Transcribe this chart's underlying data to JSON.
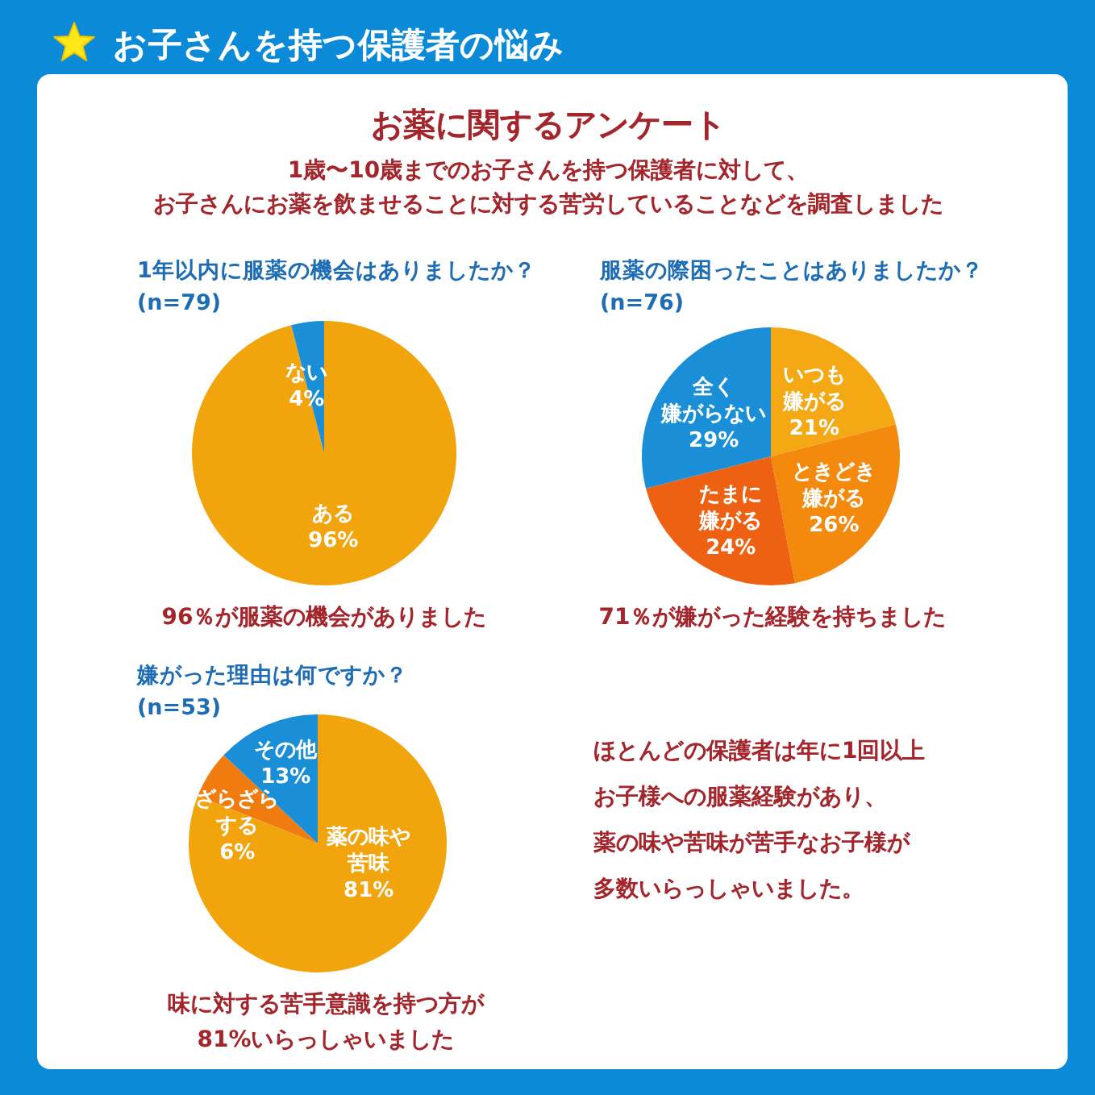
{
  "chart_data": [
    {
      "type": "other",
      "title": "お子さんを持つ保護者の悩み",
      "subtitle": "お薬に関するアンケート",
      "annotations": [
        "1歳〜10歳までのお子さんを持つ保護者に対して、",
        "お子さんにお薬を飲ませることに対する苦労していることなどを調査しました"
      ]
    },
    {
      "type": "pie",
      "title": "1年以内に服薬の機会はありましたか？",
      "subtitle": "(n=79)",
      "categories": [
        "ある",
        "ない"
      ],
      "values": [
        96,
        4
      ],
      "colors": [
        "#f2a40c",
        "#1a8fd8"
      ],
      "value_labels": [
        "96%",
        "4%"
      ],
      "annotations": [
        "96％が服薬の機会がありました"
      ]
    },
    {
      "type": "pie",
      "title": "服薬の際困ったことはありましたか？",
      "subtitle": "(n=76)",
      "categories": [
        "いつも嫌がる",
        "ときどき嫌がる",
        "たまに嫌がる",
        "全く嫌がらない"
      ],
      "values": [
        21,
        26,
        24,
        29
      ],
      "colors": [
        "#f3a814",
        "#f38a0e",
        "#ee6112",
        "#1a8fd8"
      ],
      "value_labels": [
        "21%",
        "26%",
        "24%",
        "29%"
      ],
      "annotations": [
        "71％が嫌がった経験を持ちました"
      ]
    },
    {
      "type": "pie",
      "title": "嫌がった理由は何ですか？",
      "subtitle": "(n=53)",
      "categories": [
        "薬の味や苦味",
        "ざらざらする",
        "その他"
      ],
      "values": [
        81,
        6,
        13
      ],
      "colors": [
        "#f2a40c",
        "#f07c10",
        "#1a8fd8"
      ],
      "value_labels": [
        "81%",
        "6%",
        "13%"
      ],
      "annotations": [
        "味に対する苦手意識を持つ方が",
        "81%いらっしゃいました"
      ]
    },
    {
      "type": "other",
      "annotations": [
        "ほとんどの保護者は年に1回以上",
        "お子様への服薬経験があり、",
        "薬の味や苦味が苦手なお子様が",
        "多数いらっしゃいました。"
      ]
    }
  ]
}
